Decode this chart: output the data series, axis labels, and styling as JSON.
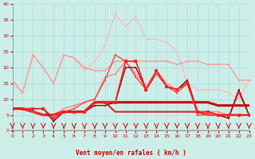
{
  "xlabel": "Vent moyen/en rafales ( km/h )",
  "xlim": [
    0,
    23
  ],
  "ylim": [
    0,
    40
  ],
  "yticks": [
    0,
    5,
    10,
    15,
    20,
    25,
    30,
    35,
    40
  ],
  "xticks": [
    0,
    1,
    2,
    3,
    4,
    5,
    6,
    7,
    8,
    9,
    10,
    11,
    12,
    13,
    14,
    15,
    16,
    17,
    18,
    19,
    20,
    21,
    22,
    23
  ],
  "background_color": "#cceee8",
  "grid_color": "#aadddd",
  "series": [
    {
      "x": [
        0,
        1,
        2,
        3,
        4,
        5,
        6,
        7,
        8,
        9,
        10,
        11,
        12,
        13,
        14,
        15,
        16,
        17,
        18,
        19,
        20,
        21,
        22,
        23
      ],
      "y": [
        15,
        12,
        24,
        20,
        15,
        24,
        23,
        19,
        22,
        27,
        37,
        33,
        36,
        29,
        29,
        28,
        25,
        15,
        13,
        13,
        13,
        12,
        10,
        16
      ],
      "color": "#ffbbbb",
      "lw": 1.0,
      "marker": "s",
      "ms": 2.0,
      "zorder": 2
    },
    {
      "x": [
        0,
        1,
        2,
        3,
        4,
        5,
        6,
        7,
        8,
        9,
        10,
        11,
        12,
        13,
        14,
        15,
        16,
        17,
        18,
        19,
        20,
        21,
        22,
        23
      ],
      "y": [
        16,
        12,
        24,
        20,
        15,
        24,
        23,
        20,
        19,
        19,
        22,
        22,
        22,
        22,
        22,
        22,
        21,
        22,
        22,
        21,
        21,
        21,
        16,
        16
      ],
      "color": "#ff9999",
      "lw": 1.0,
      "marker": "s",
      "ms": 2.0,
      "zorder": 3
    },
    {
      "x": [
        0,
        1,
        2,
        3,
        4,
        5,
        6,
        7,
        8,
        9,
        10,
        11,
        12,
        13,
        14,
        15,
        16,
        17,
        18,
        19,
        20,
        21,
        22,
        23
      ],
      "y": [
        7,
        7,
        6,
        5,
        5,
        7,
        8,
        9,
        10,
        17,
        18,
        22,
        18,
        14,
        19,
        15,
        13,
        16,
        6,
        6,
        6,
        5,
        5,
        5
      ],
      "color": "#ff8888",
      "lw": 1.0,
      "marker": "s",
      "ms": 2.0,
      "zorder": 4
    },
    {
      "x": [
        0,
        1,
        2,
        3,
        4,
        5,
        6,
        7,
        8,
        9,
        10,
        11,
        12,
        13,
        14,
        15,
        16,
        17,
        18,
        19,
        20,
        21,
        22,
        23
      ],
      "y": [
        7,
        7,
        6,
        5,
        5,
        6,
        6,
        6,
        9,
        9,
        9,
        9,
        9,
        9,
        9,
        9,
        9,
        9,
        9,
        9,
        8,
        8,
        8,
        8
      ],
      "color": "#cc0000",
      "lw": 2.2,
      "marker": null,
      "ms": 0,
      "zorder": 6
    },
    {
      "x": [
        0,
        1,
        2,
        3,
        4,
        5,
        6,
        7,
        8,
        9,
        10,
        11,
        12,
        13,
        14,
        15,
        16,
        17,
        18,
        19,
        20,
        21,
        22,
        23
      ],
      "y": [
        7,
        7,
        6,
        5,
        5,
        6,
        6,
        6,
        9,
        9,
        6,
        6,
        6,
        6,
        6,
        6,
        6,
        6,
        6,
        5,
        5,
        5,
        5,
        5
      ],
      "color": "#dd2222",
      "lw": 1.5,
      "marker": null,
      "ms": 0,
      "zorder": 5
    },
    {
      "x": [
        0,
        1,
        2,
        3,
        4,
        5,
        6,
        7,
        8,
        9,
        10,
        11,
        12,
        13,
        14,
        15,
        16,
        17,
        18,
        19,
        20,
        21,
        22,
        23
      ],
      "y": [
        7,
        7,
        7,
        7,
        4,
        6,
        6,
        6,
        9,
        9,
        9,
        22,
        22,
        13,
        19,
        14,
        13,
        15,
        6,
        6,
        5,
        5,
        5,
        5
      ],
      "color": "#ff2222",
      "lw": 1.2,
      "marker": "s",
      "ms": 2.5,
      "zorder": 8
    },
    {
      "x": [
        0,
        1,
        2,
        3,
        4,
        5,
        6,
        7,
        8,
        9,
        10,
        11,
        12,
        13,
        14,
        15,
        16,
        17,
        18,
        19,
        20,
        21,
        22,
        23
      ],
      "y": [
        7,
        7,
        7,
        7,
        3,
        6,
        6,
        6,
        8,
        8,
        9,
        20,
        20,
        13,
        19,
        14,
        13,
        16,
        6,
        6,
        5,
        4,
        13,
        5
      ],
      "color": "#aa0000",
      "lw": 1.0,
      "marker": "s",
      "ms": 2.0,
      "zorder": 7
    },
    {
      "x": [
        0,
        1,
        2,
        3,
        4,
        5,
        6,
        7,
        8,
        9,
        10,
        11,
        12,
        13,
        14,
        15,
        16,
        17,
        18,
        19,
        20,
        21,
        22,
        23
      ],
      "y": [
        7,
        7,
        6,
        5,
        5,
        6,
        7,
        9,
        10,
        16,
        24,
        22,
        17,
        13,
        18,
        14,
        12,
        15,
        5,
        5,
        5,
        4,
        12,
        5
      ],
      "color": "#ff4444",
      "lw": 1.0,
      "marker": "s",
      "ms": 2.0,
      "zorder": 6
    }
  ]
}
